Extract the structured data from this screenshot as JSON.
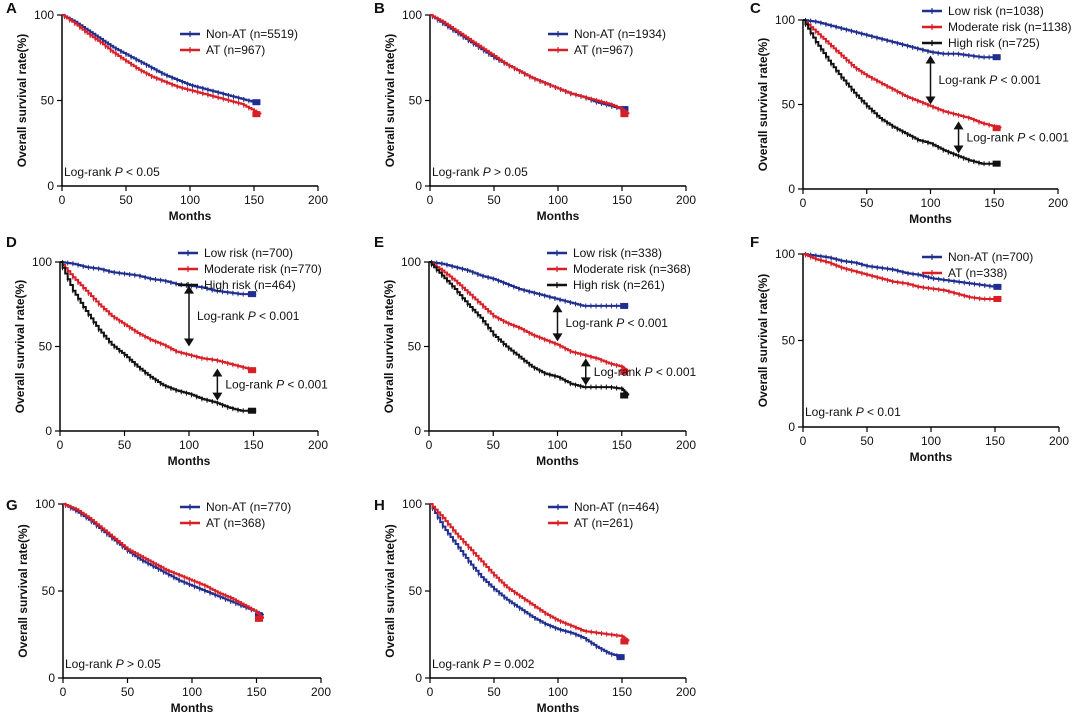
{
  "figure": {
    "axis_color": "#000000"
  },
  "chart_data": [
    {
      "type": "line",
      "panel_label": "A",
      "xlabel": "Months",
      "ylabel": "Overall survival rate(%)",
      "xlim": [
        0,
        200
      ],
      "ylim": [
        0,
        100
      ],
      "xticks": [
        "0",
        "50",
        "100",
        "150",
        "200"
      ],
      "yticks": [
        "0",
        "50",
        "100"
      ],
      "pvalue_text": {
        "prefix": "Log-rank ",
        "p": "P",
        "suffix": " < 0.05"
      },
      "series": [
        {
          "name": "Non-AT (n=5519)",
          "color": "#1f2e8f",
          "x": [
            0,
            10,
            20,
            30,
            40,
            50,
            60,
            70,
            80,
            90,
            100,
            110,
            120,
            130,
            140,
            150,
            155
          ],
          "y": [
            100,
            96,
            91,
            86,
            81,
            77,
            73,
            69,
            65,
            62,
            59,
            57,
            55,
            53,
            51,
            49,
            49
          ]
        },
        {
          "name": "AT (n=967)",
          "color": "#d81f26",
          "x": [
            0,
            10,
            20,
            30,
            40,
            50,
            60,
            70,
            80,
            90,
            100,
            110,
            120,
            130,
            140,
            150,
            155
          ],
          "y": [
            100,
            95,
            89,
            84,
            78,
            73,
            68,
            64,
            61,
            58,
            56,
            54,
            52,
            50,
            48,
            44,
            42
          ]
        }
      ]
    },
    {
      "type": "line",
      "panel_label": "B",
      "xlabel": "Months",
      "ylabel": "Overall survival rate(%)",
      "xlim": [
        0,
        200
      ],
      "ylim": [
        0,
        100
      ],
      "xticks": [
        "0",
        "50",
        "100",
        "150",
        "200"
      ],
      "yticks": [
        "0",
        "50",
        "100"
      ],
      "pvalue_text": {
        "prefix": "Log-rank ",
        "p": "P",
        "suffix": " > 0.05"
      },
      "series": [
        {
          "name": "Non-AT (n=1934)",
          "color": "#1f2e8f",
          "x": [
            0,
            10,
            20,
            30,
            40,
            50,
            60,
            70,
            80,
            90,
            100,
            110,
            120,
            130,
            140,
            150,
            155
          ],
          "y": [
            100,
            95,
            90,
            85,
            80,
            75,
            71,
            67,
            63,
            60,
            57,
            54,
            52,
            49,
            47,
            45,
            45
          ]
        },
        {
          "name": "AT (n=967)",
          "color": "#d81f26",
          "x": [
            0,
            10,
            20,
            30,
            40,
            50,
            60,
            70,
            80,
            90,
            100,
            110,
            120,
            130,
            140,
            150,
            155
          ],
          "y": [
            100,
            96,
            91,
            86,
            81,
            76,
            71,
            67,
            63,
            60,
            57,
            54,
            52,
            50,
            48,
            45,
            42
          ]
        }
      ]
    },
    {
      "type": "line",
      "panel_label": "C",
      "xlabel": "Months",
      "ylabel": "Overall survival rate(%)",
      "xlim": [
        0,
        200
      ],
      "ylim": [
        0,
        100
      ],
      "xticks": [
        "0",
        "50",
        "100",
        "150",
        "200"
      ],
      "yticks": [
        "0",
        "50",
        "100"
      ],
      "pvalue_text": null,
      "annotations": [
        {
          "x": 100,
          "y1": 79,
          "y2": 50,
          "text_prefix": "Log-rank ",
          "p": "P",
          "text_suffix": " < 0.001"
        },
        {
          "x": 122,
          "y1": 40,
          "y2": 21,
          "text_prefix": "Log-rank ",
          "p": "P",
          "text_suffix": " < 0.001"
        }
      ],
      "series": [
        {
          "name": "Low risk (n=1038)",
          "color": "#1f2e8f",
          "x": [
            0,
            10,
            20,
            30,
            40,
            50,
            60,
            70,
            80,
            90,
            100,
            110,
            120,
            130,
            140,
            150,
            155
          ],
          "y": [
            100,
            99,
            97,
            95,
            93,
            91,
            89,
            87,
            85,
            83,
            81,
            80,
            80,
            79,
            78,
            78,
            78
          ]
        },
        {
          "name": "Moderate risk (n=1138)",
          "color": "#d81f26",
          "x": [
            0,
            10,
            20,
            30,
            40,
            50,
            60,
            70,
            80,
            90,
            100,
            110,
            120,
            130,
            140,
            150,
            155
          ],
          "y": [
            100,
            93,
            86,
            79,
            72,
            67,
            63,
            59,
            55,
            52,
            49,
            46,
            44,
            42,
            39,
            37,
            36
          ]
        },
        {
          "name": "High risk (n=725)",
          "color": "#111111",
          "x": [
            0,
            10,
            20,
            30,
            40,
            50,
            60,
            70,
            80,
            90,
            100,
            110,
            120,
            130,
            140,
            150,
            155
          ],
          "y": [
            100,
            87,
            76,
            66,
            57,
            49,
            42,
            37,
            33,
            29,
            27,
            23,
            20,
            17,
            15,
            15,
            15
          ]
        }
      ]
    },
    {
      "type": "line",
      "panel_label": "D",
      "xlabel": "Months",
      "ylabel": "Overall survival rate(%)",
      "xlim": [
        0,
        200
      ],
      "ylim": [
        0,
        100
      ],
      "xticks": [
        "0",
        "50",
        "100",
        "150",
        "200"
      ],
      "yticks": [
        "0",
        "50",
        "100"
      ],
      "pvalue_text": null,
      "annotations": [
        {
          "x": 100,
          "y1": 86,
          "y2": 50,
          "text_prefix": "Log-rank ",
          "p": "P",
          "text_suffix": " < 0.001"
        },
        {
          "x": 122,
          "y1": 37,
          "y2": 18,
          "text_prefix": "Log-rank ",
          "p": "P",
          "text_suffix": " < 0.001"
        }
      ],
      "series": [
        {
          "name": "Low risk (n=700)",
          "color": "#1f2e8f",
          "x": [
            0,
            10,
            20,
            30,
            40,
            50,
            60,
            70,
            80,
            90,
            100,
            110,
            120,
            130,
            140,
            150,
            152
          ],
          "y": [
            100,
            99,
            97,
            96,
            94,
            93,
            92,
            90,
            89,
            87,
            86,
            85,
            83,
            82,
            81,
            81,
            81
          ]
        },
        {
          "name": "Moderate risk (n=770)",
          "color": "#d81f26",
          "x": [
            0,
            10,
            20,
            30,
            40,
            50,
            60,
            70,
            80,
            90,
            100,
            110,
            120,
            130,
            140,
            150,
            152
          ],
          "y": [
            100,
            91,
            83,
            75,
            68,
            63,
            58,
            54,
            51,
            47,
            45,
            43,
            42,
            40,
            38,
            36,
            36
          ]
        },
        {
          "name": "High risk (n=464)",
          "color": "#111111",
          "x": [
            0,
            10,
            20,
            30,
            40,
            50,
            60,
            70,
            80,
            90,
            100,
            110,
            120,
            130,
            140,
            150,
            152
          ],
          "y": [
            100,
            83,
            71,
            60,
            51,
            45,
            38,
            32,
            27,
            24,
            22,
            19,
            17,
            14,
            12,
            12,
            12
          ]
        }
      ]
    },
    {
      "type": "line",
      "panel_label": "E",
      "xlabel": "Months",
      "ylabel": "Overall survival rate(%)",
      "xlim": [
        0,
        200
      ],
      "ylim": [
        0,
        100
      ],
      "xticks": [
        "0",
        "50",
        "100",
        "150",
        "200"
      ],
      "yticks": [
        "0",
        "50",
        "100"
      ],
      "pvalue_text": null,
      "annotations": [
        {
          "x": 100,
          "y1": 75,
          "y2": 53,
          "text_prefix": "Log-rank ",
          "p": "P",
          "text_suffix": " < 0.001"
        },
        {
          "x": 122,
          "y1": 43,
          "y2": 27,
          "text_prefix": "Log-rank ",
          "p": "P",
          "text_suffix": " < 0.001"
        }
      ],
      "series": [
        {
          "name": "Low risk (n=338)",
          "color": "#1f2e8f",
          "x": [
            0,
            10,
            20,
            30,
            40,
            50,
            60,
            70,
            80,
            90,
            100,
            110,
            120,
            130,
            140,
            150,
            155
          ],
          "y": [
            100,
            99,
            97,
            95,
            92,
            90,
            87,
            84,
            82,
            80,
            78,
            76,
            74,
            74,
            74,
            74,
            74
          ]
        },
        {
          "name": "Moderate risk (n=368)",
          "color": "#d81f26",
          "x": [
            0,
            10,
            20,
            30,
            40,
            50,
            60,
            70,
            80,
            90,
            100,
            110,
            120,
            130,
            140,
            150,
            155
          ],
          "y": [
            100,
            95,
            89,
            82,
            75,
            68,
            64,
            61,
            57,
            54,
            51,
            47,
            45,
            43,
            40,
            38,
            35
          ]
        },
        {
          "name": "High risk (n=261)",
          "color": "#111111",
          "x": [
            0,
            10,
            20,
            30,
            40,
            50,
            60,
            70,
            80,
            90,
            100,
            110,
            120,
            130,
            140,
            150,
            155
          ],
          "y": [
            100,
            92,
            84,
            75,
            67,
            57,
            50,
            44,
            38,
            34,
            32,
            28,
            26,
            26,
            26,
            25,
            21
          ]
        }
      ]
    },
    {
      "type": "line",
      "panel_label": "F",
      "xlabel": "Months",
      "ylabel": "Overall survival rate(%)",
      "xlim": [
        0,
        200
      ],
      "ylim": [
        0,
        100
      ],
      "xticks": [
        "0",
        "50",
        "100",
        "150",
        "200"
      ],
      "yticks": [
        "0",
        "50",
        "100"
      ],
      "pvalue_text": {
        "prefix": "Log-rank ",
        "p": "P",
        "suffix": " < 0.01"
      },
      "series": [
        {
          "name": "Non-AT (n=700)",
          "color": "#1f2e8f",
          "x": [
            0,
            10,
            20,
            30,
            40,
            50,
            60,
            70,
            80,
            90,
            100,
            110,
            120,
            130,
            140,
            150,
            155
          ],
          "y": [
            100,
            99,
            98,
            96,
            95,
            93,
            92,
            91,
            89,
            88,
            86,
            85,
            84,
            83,
            82,
            81,
            81
          ]
        },
        {
          "name": "AT (n=338)",
          "color": "#d81f26",
          "x": [
            0,
            10,
            20,
            30,
            40,
            50,
            60,
            70,
            80,
            90,
            100,
            110,
            120,
            130,
            140,
            150,
            155
          ],
          "y": [
            100,
            97,
            95,
            92,
            90,
            88,
            86,
            84,
            83,
            81,
            80,
            79,
            77,
            75,
            74,
            74,
            74
          ]
        }
      ]
    },
    {
      "type": "line",
      "panel_label": "G",
      "xlabel": "Months",
      "ylabel": "Overall survival rate(%)",
      "xlim": [
        0,
        200
      ],
      "ylim": [
        0,
        100
      ],
      "xticks": [
        "0",
        "50",
        "100",
        "150",
        "200"
      ],
      "yticks": [
        "0",
        "50",
        "100"
      ],
      "pvalue_text": {
        "prefix": "Log-rank ",
        "p": "P",
        "suffix": " > 0.05"
      },
      "series": [
        {
          "name": "Non-AT (n=770)",
          "color": "#1f2e8f",
          "x": [
            0,
            10,
            20,
            30,
            40,
            50,
            60,
            70,
            80,
            90,
            100,
            110,
            120,
            130,
            140,
            150,
            155
          ],
          "y": [
            100,
            96,
            91,
            85,
            79,
            73,
            68,
            64,
            60,
            56,
            53,
            50,
            47,
            44,
            41,
            38,
            36
          ]
        },
        {
          "name": "AT (n=368)",
          "color": "#d81f26",
          "x": [
            0,
            10,
            20,
            30,
            40,
            50,
            60,
            70,
            80,
            90,
            100,
            110,
            120,
            130,
            140,
            150,
            155
          ],
          "y": [
            100,
            97,
            92,
            86,
            80,
            74,
            70,
            66,
            62,
            59,
            56,
            53,
            49,
            46,
            42,
            38,
            34
          ]
        }
      ]
    },
    {
      "type": "line",
      "panel_label": "H",
      "xlabel": "Months",
      "ylabel": "Overall survival rate(%)",
      "xlim": [
        0,
        200
      ],
      "ylim": [
        0,
        100
      ],
      "xticks": [
        "0",
        "50",
        "100",
        "150",
        "200"
      ],
      "yticks": [
        "0",
        "50",
        "100"
      ],
      "pvalue_text": {
        "prefix": "Log-rank ",
        "p": "P",
        "suffix": " = 0.002"
      },
      "series": [
        {
          "name": "Non-AT (n=464)",
          "color": "#1f2e8f",
          "x": [
            0,
            10,
            20,
            30,
            40,
            50,
            60,
            70,
            80,
            90,
            100,
            110,
            120,
            130,
            140,
            150,
            152
          ],
          "y": [
            100,
            87,
            77,
            67,
            58,
            51,
            45,
            40,
            35,
            31,
            28,
            26,
            23,
            18,
            14,
            12,
            12
          ]
        },
        {
          "name": "AT (n=261)",
          "color": "#d81f26",
          "x": [
            0,
            10,
            20,
            30,
            40,
            50,
            60,
            70,
            80,
            90,
            100,
            110,
            120,
            130,
            140,
            150,
            155
          ],
          "y": [
            100,
            92,
            83,
            75,
            67,
            59,
            52,
            47,
            42,
            37,
            33,
            30,
            27,
            26,
            25,
            24,
            21
          ]
        }
      ]
    }
  ]
}
